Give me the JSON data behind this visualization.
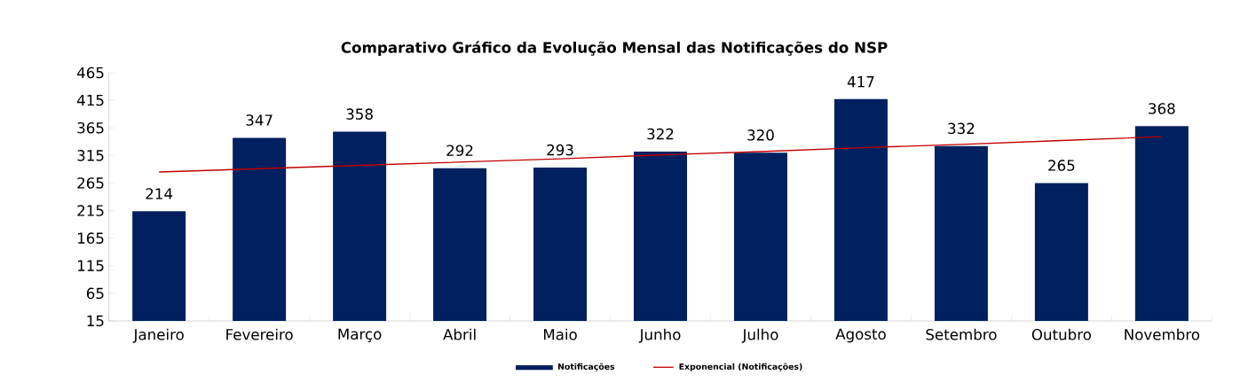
{
  "chart_data": {
    "type": "bar",
    "title": "Comparativo Gráfico da Evolução Mensal das Notificações do NSP",
    "categories": [
      "Janeiro",
      "Fevereiro",
      "Março",
      "Abril",
      "Maio",
      "Junho",
      "Julho",
      "Agosto",
      "Setembro",
      "Outubro",
      "Novembro"
    ],
    "series": [
      {
        "name": "Notificações",
        "color": "#002060",
        "values": [
          214,
          347,
          358,
          292,
          293,
          322,
          320,
          417,
          332,
          265,
          368
        ],
        "value_labels": [
          "214",
          "347",
          "358",
          "292",
          "293",
          "322",
          "320",
          "417",
          "332",
          "265",
          "368"
        ]
      },
      {
        "name": "Exponencial (Notificações)",
        "type": "line",
        "color": "#c00000",
        "values": [
          285,
          291,
          297,
          303,
          309,
          316,
          322,
          329,
          335,
          342,
          349
        ]
      }
    ],
    "ylim": [
      15,
      465
    ],
    "yticks": [
      15,
      65,
      115,
      165,
      215,
      265,
      315,
      365,
      415,
      465
    ],
    "grid": false,
    "legend": "bottom"
  }
}
